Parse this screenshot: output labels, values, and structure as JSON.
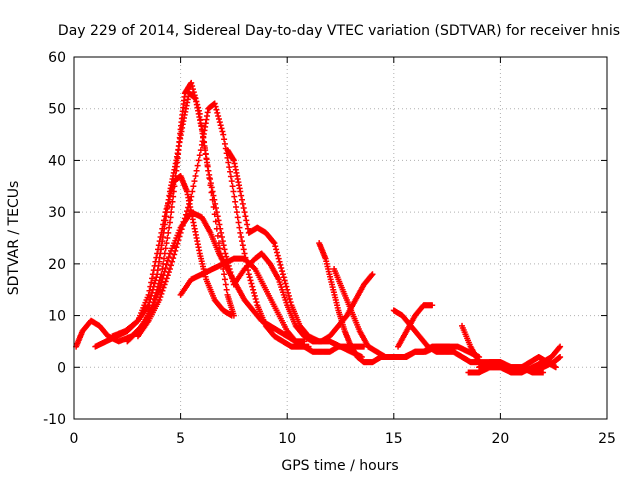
{
  "chart_data": {
    "type": "scatter",
    "title": "Day 229 of 2014, Sidereal Day-to-day VTEC variation (SDTVAR) for receiver hnis",
    "xlabel": "GPS time / hours",
    "ylabel": "SDTVAR / TECUs",
    "xlim": [
      0,
      25
    ],
    "ylim": [
      -10,
      60
    ],
    "xticks": [
      "0",
      "5",
      "10",
      "15",
      "20",
      "25"
    ],
    "yticks": [
      "-10",
      "0",
      "10",
      "20",
      "30",
      "40",
      "50",
      "60"
    ],
    "grid": true,
    "marker": "+",
    "color": "#ff0000",
    "series": [
      {
        "name": "trace-1",
        "x": [
          0.1,
          0.4,
          0.8,
          1.2,
          1.6,
          2.1,
          2.7,
          3.2,
          3.7,
          4.1,
          4.5,
          4.8,
          5.0,
          5.2,
          5.5,
          5.9,
          6.3,
          6.8,
          7.2,
          7.5
        ],
        "y": [
          4,
          7,
          9,
          8,
          6,
          5,
          6,
          8,
          12,
          18,
          28,
          38,
          46,
          53,
          55,
          49,
          38,
          24,
          14,
          10
        ]
      },
      {
        "name": "trace-2",
        "x": [
          1.0,
          1.5,
          2.0,
          2.5,
          3.0,
          3.5,
          3.9,
          4.3,
          4.7,
          5.0,
          5.3,
          5.6,
          5.9,
          6.2,
          6.6,
          7.0,
          7.4
        ],
        "y": [
          4,
          5,
          6,
          7,
          9,
          14,
          22,
          30,
          36,
          37,
          34,
          28,
          22,
          17,
          13,
          11,
          10
        ]
      },
      {
        "name": "trace-3",
        "x": [
          1.8,
          2.4,
          3.0,
          3.5,
          3.9,
          4.2,
          4.5,
          4.8,
          5.1,
          5.4,
          5.7,
          6.0,
          6.3,
          6.7,
          7.1,
          7.5
        ],
        "y": [
          6,
          7,
          9,
          12,
          18,
          26,
          34,
          40,
          47,
          53,
          52,
          46,
          38,
          30,
          22,
          16
        ]
      },
      {
        "name": "trace-4",
        "x": [
          2.5,
          3.0,
          3.5,
          4.0,
          4.5,
          5.0,
          5.5,
          6.0,
          6.4,
          6.8,
          7.2,
          7.6,
          8.0,
          8.4,
          8.8,
          9.2,
          9.6,
          10.0,
          10.4,
          10.8
        ],
        "y": [
          5,
          7,
          10,
          15,
          22,
          27,
          30,
          29,
          26,
          22,
          19,
          16,
          13,
          11,
          9,
          8,
          7,
          6,
          5,
          5
        ]
      },
      {
        "name": "trace-5",
        "x": [
          3.0,
          3.5,
          4.0,
          4.5,
          5.0,
          5.5,
          6.0,
          6.3,
          6.6,
          7.0,
          7.4,
          7.8,
          8.2,
          8.6,
          9.0,
          9.4,
          9.8,
          10.2,
          10.6,
          11.0
        ],
        "y": [
          6,
          9,
          13,
          19,
          26,
          33,
          43,
          50,
          51,
          45,
          36,
          26,
          18,
          12,
          8,
          6,
          5,
          4,
          4,
          4
        ]
      },
      {
        "name": "trace-6",
        "x": [
          5.0,
          5.5,
          6.0,
          6.5,
          7.0,
          7.5,
          8.0,
          8.5,
          9.0,
          9.5,
          10.0,
          10.4,
          10.8,
          11.2,
          11.6,
          12.0,
          12.4,
          12.8,
          13.2,
          13.6
        ],
        "y": [
          14,
          17,
          18,
          19,
          20,
          21,
          21,
          19,
          15,
          11,
          7,
          5,
          4,
          3,
          3,
          3,
          4,
          4,
          4,
          4
        ]
      },
      {
        "name": "trace-7",
        "x": [
          7.2,
          7.5,
          7.8,
          8.2,
          8.6,
          9.0,
          9.4,
          9.8,
          10.2,
          10.6,
          11.0,
          11.5,
          12.0,
          12.5,
          13.0,
          13.5
        ],
        "y": [
          42,
          40,
          34,
          26,
          27,
          26,
          24,
          18,
          12,
          8,
          6,
          5,
          5,
          4,
          3,
          2
        ]
      },
      {
        "name": "trace-8",
        "x": [
          7.5,
          8.0,
          8.5,
          8.8,
          9.2,
          9.6,
          10.0,
          10.4,
          10.8,
          11.2,
          11.6,
          12.0,
          12.4,
          12.8,
          13.2,
          13.6,
          14.0
        ],
        "y": [
          16,
          19,
          21,
          22,
          20,
          17,
          12,
          8,
          6,
          5,
          5,
          6,
          8,
          10,
          13,
          16,
          18
        ]
      },
      {
        "name": "trace-9",
        "x": [
          11.5,
          11.8,
          12.1,
          12.4,
          12.7,
          13.0,
          13.3,
          13.6,
          14.0,
          14.4,
          14.8,
          15.2,
          15.6,
          16.0,
          16.4,
          16.8,
          17.2,
          17.6
        ],
        "y": [
          24,
          21,
          16,
          11,
          7,
          4,
          2,
          1,
          1,
          2,
          2,
          2,
          2,
          3,
          3,
          4,
          4,
          4
        ]
      },
      {
        "name": "trace-10",
        "x": [
          12.2,
          12.6,
          13.0,
          13.4,
          13.8,
          14.2,
          14.6,
          15.0,
          15.5,
          16.0,
          16.5,
          17.0,
          17.5,
          18.0,
          18.5,
          19.0
        ],
        "y": [
          19,
          15,
          11,
          7,
          4,
          3,
          2,
          2,
          2,
          3,
          3,
          4,
          4,
          4,
          3,
          2
        ]
      },
      {
        "name": "trace-11",
        "x": [
          15.0,
          15.4,
          15.8,
          16.2,
          16.6,
          17.0,
          17.4,
          17.8,
          18.2,
          18.6,
          19.0,
          19.5,
          20.0,
          20.5,
          21.0,
          21.5,
          22.0
        ],
        "y": [
          11,
          10,
          8,
          6,
          4,
          3,
          3,
          3,
          2,
          1,
          1,
          0,
          0,
          0,
          0,
          -1,
          -1
        ]
      },
      {
        "name": "trace-12",
        "x": [
          15.2,
          15.6,
          16.0,
          16.4,
          16.8
        ],
        "y": [
          4,
          7,
          10,
          12,
          12
        ]
      },
      {
        "name": "trace-13",
        "x": [
          18.2,
          18.6,
          19.0,
          19.5,
          20.0,
          20.5,
          21.0,
          21.5,
          22.0,
          22.5,
          22.8
        ],
        "y": [
          8,
          4,
          1,
          1,
          1,
          0,
          0,
          -1,
          0,
          1,
          2
        ]
      },
      {
        "name": "trace-14",
        "x": [
          18.5,
          19.0,
          19.5,
          20.0,
          20.5,
          21.0,
          21.5,
          22.0,
          22.4,
          22.8
        ],
        "y": [
          -1,
          -1,
          0,
          0,
          -1,
          -1,
          0,
          1,
          2,
          4
        ]
      },
      {
        "name": "trace-15",
        "x": [
          19.0,
          19.5,
          20.0,
          20.5,
          21.0,
          21.4,
          21.8,
          22.2,
          22.6
        ],
        "y": [
          0,
          1,
          1,
          0,
          0,
          1,
          2,
          1,
          0
        ]
      }
    ]
  }
}
